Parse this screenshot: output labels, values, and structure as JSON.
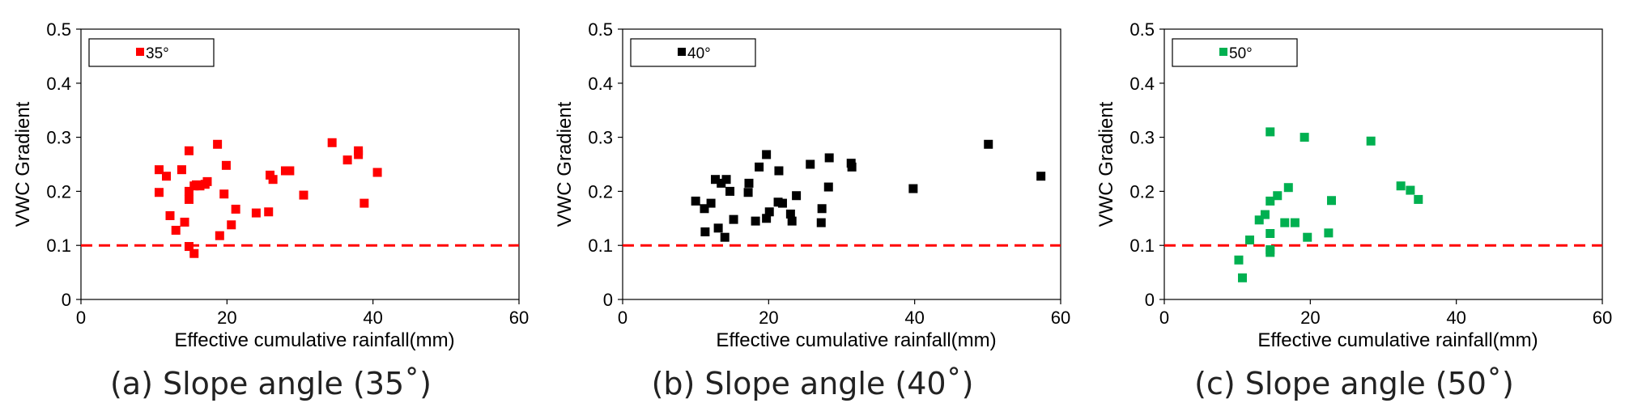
{
  "chart_data": [
    {
      "type": "scatter",
      "xlabel": "Effective cumulative rainfall(mm)",
      "ylabel": "VWC Gradient",
      "xlim": [
        0,
        60
      ],
      "ylim": [
        0,
        0.5
      ],
      "xticks": [
        0,
        20,
        40,
        60
      ],
      "yticks": [
        0,
        0.1,
        0.2,
        0.3,
        0.4,
        0.5
      ],
      "ytick_labels": [
        "0",
        "0.1",
        "0.2",
        "0.3",
        "0.4",
        "0.5"
      ],
      "threshold": 0.1,
      "legend_position": "top-left",
      "caption": "(a) Slope angle (35˚)",
      "series": [
        {
          "name": "35°",
          "color": "#ff0000",
          "points": [
            [
              10.7,
              0.24
            ],
            [
              10.7,
              0.198
            ],
            [
              11.7,
              0.228
            ],
            [
              12.2,
              0.155
            ],
            [
              13.0,
              0.128
            ],
            [
              13.8,
              0.24
            ],
            [
              14.2,
              0.143
            ],
            [
              14.8,
              0.275
            ],
            [
              14.8,
              0.2
            ],
            [
              14.8,
              0.185
            ],
            [
              14.8,
              0.098
            ],
            [
              15.5,
              0.085
            ],
            [
              15.5,
              0.21
            ],
            [
              15.8,
              0.212
            ],
            [
              16.3,
              0.21
            ],
            [
              17.0,
              0.213
            ],
            [
              17.3,
              0.218
            ],
            [
              18.7,
              0.287
            ],
            [
              19.0,
              0.118
            ],
            [
              19.6,
              0.195
            ],
            [
              19.9,
              0.248
            ],
            [
              20.6,
              0.138
            ],
            [
              21.2,
              0.167
            ],
            [
              24.0,
              0.16
            ],
            [
              25.7,
              0.162
            ],
            [
              25.9,
              0.23
            ],
            [
              26.3,
              0.222
            ],
            [
              28.0,
              0.238
            ],
            [
              28.6,
              0.238
            ],
            [
              30.5,
              0.193
            ],
            [
              34.4,
              0.29
            ],
            [
              36.5,
              0.258
            ],
            [
              38.0,
              0.275
            ],
            [
              38.0,
              0.268
            ],
            [
              38.8,
              0.178
            ],
            [
              40.6,
              0.235
            ]
          ]
        }
      ]
    },
    {
      "type": "scatter",
      "xlabel": "Effective cumulative rainfall(mm)",
      "ylabel": "VWC Gradient",
      "xlim": [
        0,
        60
      ],
      "ylim": [
        0,
        0.5
      ],
      "xticks": [
        0,
        20,
        40,
        60
      ],
      "yticks": [
        0,
        0.1,
        0.2,
        0.3,
        0.4,
        0.5
      ],
      "ytick_labels": [
        "0",
        "0.1",
        "0.2",
        "0.3",
        "0.4",
        "0.5"
      ],
      "threshold": 0.1,
      "legend_position": "top-left",
      "caption": "(b) Slope angle (40˚)",
      "series": [
        {
          "name": "40°",
          "color": "#000000",
          "points": [
            [
              10.0,
              0.182
            ],
            [
              11.2,
              0.168
            ],
            [
              11.3,
              0.125
            ],
            [
              12.1,
              0.178
            ],
            [
              12.7,
              0.222
            ],
            [
              13.1,
              0.132
            ],
            [
              13.5,
              0.215
            ],
            [
              14.0,
              0.115
            ],
            [
              14.2,
              0.222
            ],
            [
              14.7,
              0.2
            ],
            [
              15.2,
              0.148
            ],
            [
              17.2,
              0.198
            ],
            [
              17.3,
              0.215
            ],
            [
              18.2,
              0.145
            ],
            [
              18.7,
              0.245
            ],
            [
              19.7,
              0.15
            ],
            [
              19.7,
              0.268
            ],
            [
              20.1,
              0.162
            ],
            [
              21.3,
              0.18
            ],
            [
              21.4,
              0.238
            ],
            [
              21.9,
              0.178
            ],
            [
              23.0,
              0.158
            ],
            [
              23.2,
              0.145
            ],
            [
              23.8,
              0.192
            ],
            [
              25.7,
              0.25
            ],
            [
              27.2,
              0.142
            ],
            [
              27.3,
              0.168
            ],
            [
              28.2,
              0.208
            ],
            [
              28.3,
              0.262
            ],
            [
              31.3,
              0.252
            ],
            [
              31.4,
              0.245
            ],
            [
              39.8,
              0.205
            ],
            [
              50.1,
              0.287
            ],
            [
              57.3,
              0.228
            ]
          ]
        }
      ]
    },
    {
      "type": "scatter",
      "xlabel": "Effective cumulative rainfall(mm)",
      "ylabel": "VWC Gradient",
      "xlim": [
        0,
        60
      ],
      "ylim": [
        0,
        0.5
      ],
      "xticks": [
        0,
        20,
        40,
        60
      ],
      "yticks": [
        0,
        0.1,
        0.2,
        0.3,
        0.4,
        0.5
      ],
      "ytick_labels": [
        "0",
        "0.1",
        "0.2",
        "0.3",
        "0.4",
        "0.5"
      ],
      "threshold": 0.1,
      "legend_position": "top-left",
      "caption": "(c) Slope angle (50˚)",
      "series": [
        {
          "name": "50°",
          "color": "#00b050",
          "points": [
            [
              10.2,
              0.073
            ],
            [
              10.7,
              0.04
            ],
            [
              11.7,
              0.11
            ],
            [
              13.0,
              0.147
            ],
            [
              13.8,
              0.157
            ],
            [
              14.5,
              0.31
            ],
            [
              14.5,
              0.182
            ],
            [
              14.5,
              0.122
            ],
            [
              14.5,
              0.092
            ],
            [
              14.5,
              0.087
            ],
            [
              15.5,
              0.192
            ],
            [
              16.5,
              0.142
            ],
            [
              17.0,
              0.207
            ],
            [
              17.9,
              0.142
            ],
            [
              19.2,
              0.3
            ],
            [
              19.6,
              0.115
            ],
            [
              22.5,
              0.123
            ],
            [
              22.9,
              0.183
            ],
            [
              28.3,
              0.293
            ],
            [
              32.4,
              0.21
            ],
            [
              33.7,
              0.202
            ],
            [
              34.8,
              0.185
            ]
          ]
        }
      ]
    }
  ]
}
